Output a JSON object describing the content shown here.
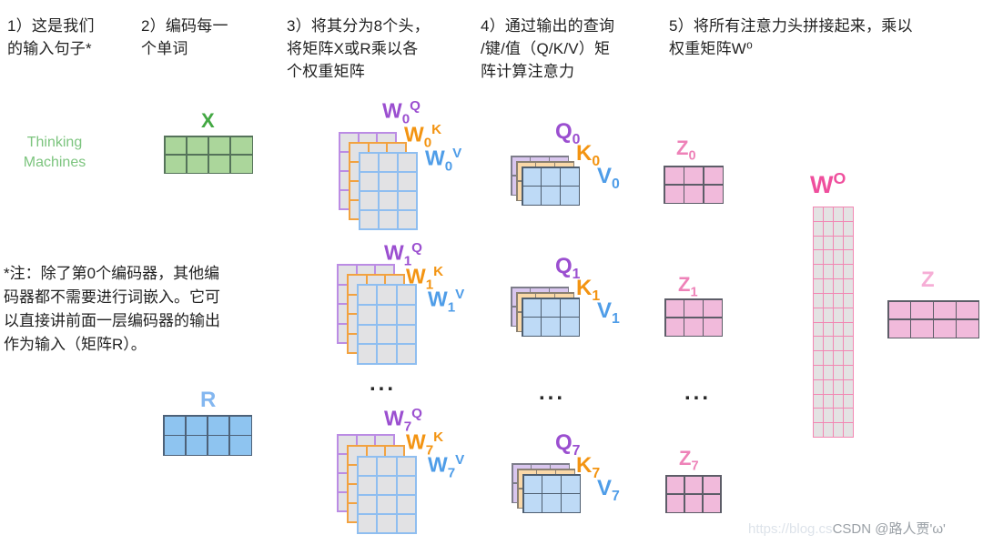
{
  "steps": [
    {
      "text": "1）这是我们\n的输入句子*"
    },
    {
      "text": "2）编码每一\n个单词"
    },
    {
      "text": "3）将其分为8个头，\n将矩阵X或R乘以各\n个权重矩阵"
    },
    {
      "text": "4）通过输出的查询\n/键/值（Q/K/V）矩\n阵计算注意力"
    },
    {
      "text": "5）将所有注意力头拼接起来，乘以\n权重矩阵W⁰"
    }
  ],
  "input_words": "Thinking\nMachines",
  "note": "*注：除了第0个编码器，其他编\n码器都不需要进行词嵌入。它可\n以直接讲前面一层编码器的输出\n作为输入（矩阵R）。",
  "x_label": "X",
  "r_label": "R",
  "heads": [
    {
      "w_labels": [
        {
          "base": "W",
          "sub": "0",
          "sup": "Q"
        },
        {
          "base": "W",
          "sub": "0",
          "sup": "K"
        },
        {
          "base": "W",
          "sub": "0",
          "sup": "V"
        }
      ],
      "qkv_labels": [
        {
          "base": "Q",
          "sub": "0"
        },
        {
          "base": "K",
          "sub": "0"
        },
        {
          "base": "V",
          "sub": "0"
        }
      ],
      "z_label": {
        "base": "Z",
        "sub": "0"
      }
    },
    {
      "w_labels": [
        {
          "base": "W",
          "sub": "1",
          "sup": "Q"
        },
        {
          "base": "W",
          "sub": "1",
          "sup": "K"
        },
        {
          "base": "W",
          "sub": "1",
          "sup": "V"
        }
      ],
      "qkv_labels": [
        {
          "base": "Q",
          "sub": "1"
        },
        {
          "base": "K",
          "sub": "1"
        },
        {
          "base": "V",
          "sub": "1"
        }
      ],
      "z_label": {
        "base": "Z",
        "sub": "1"
      }
    },
    {
      "w_labels": [
        {
          "base": "W",
          "sub": "7",
          "sup": "Q"
        },
        {
          "base": "W",
          "sub": "7",
          "sup": "K"
        },
        {
          "base": "W",
          "sub": "7",
          "sup": "V"
        }
      ],
      "qkv_labels": [
        {
          "base": "Q",
          "sub": "7"
        },
        {
          "base": "K",
          "sub": "7"
        },
        {
          "base": "V",
          "sub": "7"
        }
      ],
      "z_label": {
        "base": "Z",
        "sub": "7"
      }
    }
  ],
  "ellipsis": "...",
  "wo_label": {
    "base": "W",
    "sup": "O"
  },
  "z_final_label": "Z",
  "watermark": {
    "url_text": "https://blog.cs",
    "handle": "CSDN @路人贾'ω'"
  },
  "matrix_dims": {
    "x": {
      "rows": 2,
      "cols": 4
    },
    "r": {
      "rows": 2,
      "cols": 4
    },
    "w": {
      "rows": 4,
      "cols": 3
    },
    "qkv": {
      "rows": 2,
      "cols": 3
    },
    "z_head": {
      "rows": 2,
      "cols": 3
    },
    "wo": {
      "rows": 16,
      "cols": 4
    },
    "z_final": {
      "rows": 2,
      "cols": 4
    }
  },
  "palette": {
    "green_label": "#43a843",
    "green_words": "#7cc47e",
    "green_fill": "#abd69b",
    "blue_fill": "#8ec4f0",
    "blue_label": "#4f9de8",
    "light_blue_label": "#84b7f0",
    "purple_label": "#9b4fd0",
    "orange_label": "#f39412",
    "pink_label": "#ee82b8",
    "pink_strong_label": "#ef4f9d",
    "pink_light_label": "#f6aed6",
    "pink_fill": "#f1badb",
    "gray_fill": "#e3e3e3",
    "text": "#222222"
  }
}
